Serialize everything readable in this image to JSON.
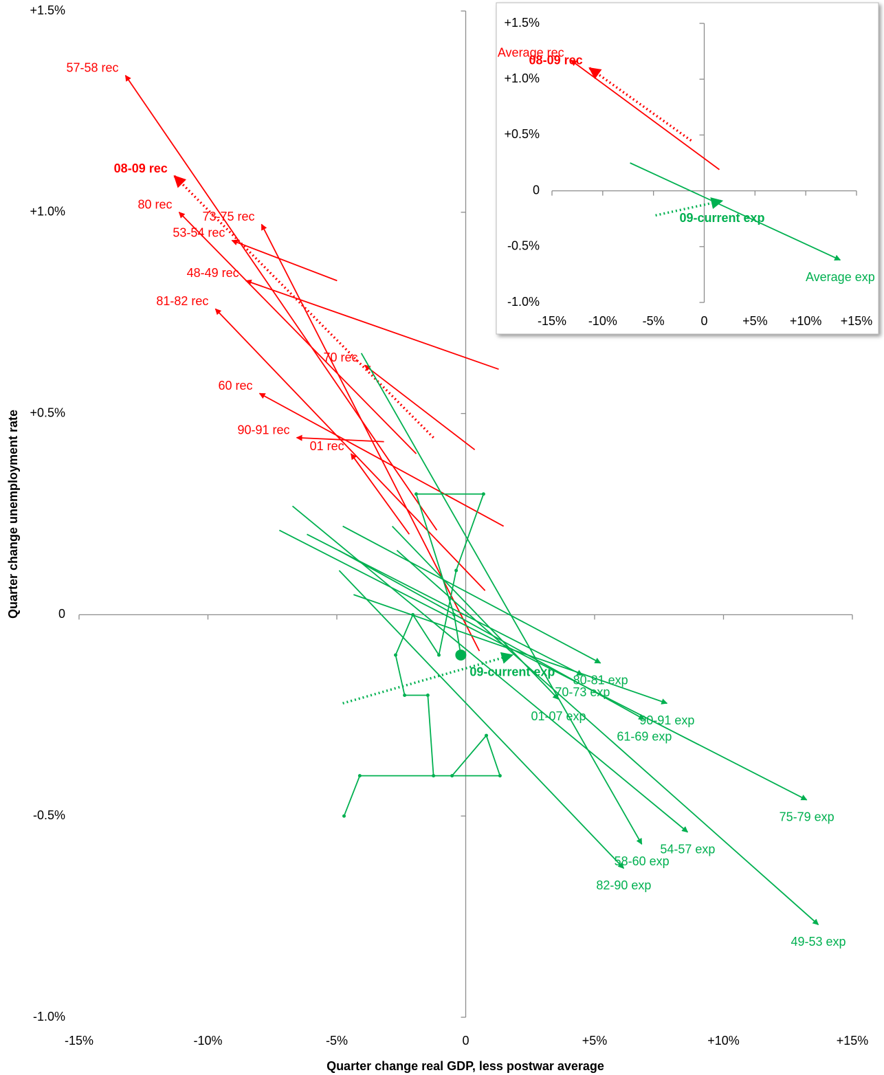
{
  "chart_data": [
    {
      "type": "arrow",
      "x_label": "Quarter change real GDP, less postwar average",
      "y_label": "Quarter change unemployment rate",
      "xlim": [
        -15,
        15
      ],
      "ylim": [
        -1.0,
        1.5
      ],
      "xticks": [
        {
          "value": -15,
          "label": "-15%"
        },
        {
          "value": -10,
          "label": "-10%"
        },
        {
          "value": -5,
          "label": "-5%"
        },
        0,
        {
          "value": 5,
          "label": "+5%"
        },
        {
          "value": 10,
          "label": "+10%"
        },
        {
          "value": 15,
          "label": "+15%"
        }
      ],
      "yticks": [
        {
          "value": -1.0,
          "label": "-1.0%"
        },
        {
          "value": -0.5,
          "label": "-0.5%"
        },
        0,
        {
          "value": 0.5,
          "label": "+0.5%"
        },
        {
          "value": 1.0,
          "label": "+1.0%"
        },
        {
          "value": 1.5,
          "label": "+1.5%"
        }
      ],
      "series": [
        {
          "name": "57-58 rec",
          "color": "#ff0000",
          "x": [
            -1.12,
            -13.2
          ],
          "y": [
            0.21,
            1.34
          ]
        },
        {
          "name": "08-09 rec",
          "color": "#ff0000",
          "style": "dotted",
          "bold": true,
          "x": [
            -1.25,
            -11.3
          ],
          "y": [
            0.44,
            1.09
          ]
        },
        {
          "name": "73-75 rec",
          "color": "#ff0000",
          "x": [
            0.53,
            -7.92
          ],
          "y": [
            -0.09,
            0.97
          ]
        },
        {
          "name": "80 rec",
          "color": "#ff0000",
          "x": [
            -1.92,
            -11.12
          ],
          "y": [
            0.4,
            1.0
          ]
        },
        {
          "name": "53-54 rec",
          "color": "#ff0000",
          "x": [
            -4.99,
            -9.07
          ],
          "y": [
            0.83,
            0.93
          ]
        },
        {
          "name": "48-49 rec",
          "color": "#ff0000",
          "x": [
            1.28,
            -8.53
          ],
          "y": [
            0.61,
            0.83
          ]
        },
        {
          "name": "81-82 rec",
          "color": "#ff0000",
          "x": [
            0.75,
            -9.71
          ],
          "y": [
            0.06,
            0.76
          ]
        },
        {
          "name": "70 rec",
          "color": "#ff0000",
          "x": [
            0.35,
            -3.92
          ],
          "y": [
            0.41,
            0.62
          ]
        },
        {
          "name": "60 rec",
          "color": "#ff0000",
          "x": [
            1.47,
            -8.0
          ],
          "y": [
            0.22,
            0.55
          ]
        },
        {
          "name": "90-91 rec",
          "color": "#ff0000",
          "x": [
            -3.17,
            -6.56
          ],
          "y": [
            0.43,
            0.44
          ]
        },
        {
          "name": "01 rec",
          "color": "#ff0000",
          "x": [
            -2.19,
            -4.45
          ],
          "y": [
            0.2,
            0.4
          ]
        },
        {
          "name": "80-81 exp",
          "color": "#00b050",
          "x": [
            -4.77,
            5.23
          ],
          "y": [
            0.22,
            -0.12
          ]
        },
        {
          "name": "70-73 exp",
          "color": "#00b050",
          "x": [
            -6.16,
            4.53
          ],
          "y": [
            0.2,
            -0.15
          ]
        },
        {
          "name": "01-07 exp",
          "color": "#00b050",
          "x": [
            -2.85,
            3.6
          ],
          "y": [
            0.22,
            -0.21
          ]
        },
        {
          "name": "61-69 exp",
          "color": "#00b050",
          "x": [
            -4.93,
            6.93
          ],
          "y": [
            0.16,
            -0.26
          ]
        },
        {
          "name": "90-91 exp",
          "color": "#00b050",
          "x": [
            -4.35,
            7.81
          ],
          "y": [
            0.05,
            -0.22
          ]
        },
        {
          "name": "75-79 exp",
          "color": "#00b050",
          "x": [
            -7.23,
            13.23
          ],
          "y": [
            0.21,
            -0.46
          ]
        },
        {
          "name": "54-57 exp",
          "color": "#00b050",
          "x": [
            -6.72,
            8.61
          ],
          "y": [
            0.27,
            -0.54
          ]
        },
        {
          "name": "58-60 exp",
          "color": "#00b050",
          "x": [
            -4.05,
            6.83
          ],
          "y": [
            0.65,
            -0.57
          ]
        },
        {
          "name": "82-90 exp",
          "color": "#00b050",
          "x": [
            -4.91,
            6.13
          ],
          "y": [
            0.11,
            -0.63
          ]
        },
        {
          "name": "49-53 exp",
          "color": "#00b050",
          "x": [
            -2.67,
            13.68
          ],
          "y": [
            0.16,
            -0.77
          ]
        },
        {
          "name": "09-current exp",
          "color": "#00b050",
          "style": "dotted",
          "bold": true,
          "x": [
            -4.77,
            1.81
          ],
          "y": [
            -0.22,
            -0.1
          ],
          "path_x": [
            -4.72,
            -4.11,
            1.33,
            0.8,
            -0.53,
            -1.25,
            -1.47,
            -2.37,
            -2.72,
            -2.05,
            -1.04,
            -0.37,
            0.69,
            -1.92,
            -0.45,
            -0.19
          ],
          "path_y": [
            -0.5,
            -0.4,
            -0.4,
            -0.3,
            -0.4,
            -0.4,
            -0.2,
            -0.2,
            -0.1,
            0.0,
            -0.1,
            0.11,
            0.3,
            0.3,
            0.0,
            -0.1
          ]
        }
      ]
    },
    {
      "type": "arrow",
      "xlim": [
        -15,
        15
      ],
      "ylim": [
        -1.0,
        1.5
      ],
      "xticks": [
        {
          "value": -15,
          "label": "-15%"
        },
        {
          "value": -10,
          "label": "-10%"
        },
        {
          "value": -5,
          "label": "-5%"
        },
        0,
        {
          "value": 5,
          "label": "+5%"
        },
        {
          "value": 10,
          "label": "+10%"
        },
        {
          "value": 15,
          "label": "+15%"
        }
      ],
      "yticks": [
        {
          "value": -1.0,
          "label": "-1.0%"
        },
        {
          "value": -0.5,
          "label": "-0.5%"
        },
        0,
        {
          "value": 0.5,
          "label": "+0.5%"
        },
        {
          "value": 1.0,
          "label": "+1.0%"
        },
        {
          "value": 1.5,
          "label": "+1.5%"
        }
      ],
      "series": [
        {
          "name": "Average rec",
          "color": "#ff0000",
          "x": [
            1.49,
            -13.13
          ],
          "y": [
            0.19,
            1.17
          ]
        },
        {
          "name": "08-09 rec",
          "color": "#ff0000",
          "style": "dotted",
          "bold": true,
          "x": [
            -1.29,
            -11.3
          ],
          "y": [
            0.45,
            1.1
          ]
        },
        {
          "name": "Average exp",
          "color": "#00b050",
          "x": [
            -7.31,
            13.4
          ],
          "y": [
            0.25,
            -0.62
          ]
        },
        {
          "name": "09-current exp",
          "color": "#00b050",
          "style": "dotted",
          "bold": true,
          "x": [
            -4.8,
            1.76
          ],
          "y": [
            -0.22,
            -0.09
          ]
        }
      ]
    }
  ]
}
